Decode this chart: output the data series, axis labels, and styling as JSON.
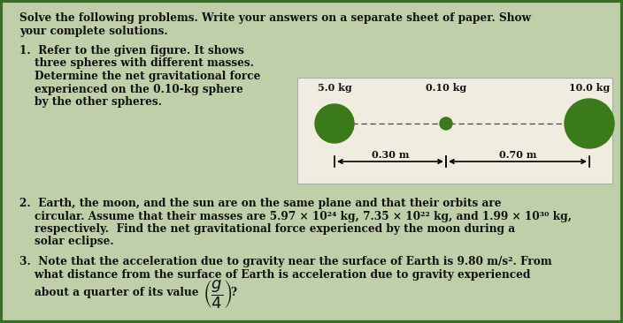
{
  "bg_color": "#bfcfaa",
  "page_bg": "#e8e4d4",
  "border_color": "#3a6e28",
  "border_color2": "#5a9e38",
  "sphere_color": "#3a7a18",
  "diag_bg": "#f0ede0",
  "diag_border": "#aaaaaa",
  "mass1": "5.0 kg",
  "mass2": "0.10 kg",
  "mass3": "10.0 kg",
  "dist1": "0.30 m",
  "dist2": "0.70 m",
  "text_color": "#111111",
  "title1": "Solve the following problems. Write your answers on a separate sheet of paper. Show",
  "title2": "your complete solutions.",
  "p1_l1": "1.  Refer to the given figure. It shows",
  "p1_l2": "    three spheres with different masses.",
  "p1_l3": "    Determine the net gravitational force",
  "p1_l4": "    experienced on the 0.10-kg sphere",
  "p1_l5": "    by the other spheres.",
  "p2_l1": "2.  Earth, the moon, and the sun are on the same plane and that their orbits are",
  "p2_l2": "    circular. Assume that their masses are 5.97 × 10²⁴ kg, 7.35 × 10²² kg, and 1.99 × 10³⁰ kg,",
  "p2_l3": "    respectively.  Find the net gravitational force experienced by the moon during a",
  "p2_l4": "    solar eclipse.",
  "p3_l1": "3.  Note that the acceleration due to gravity near the surface of Earth is 9.80 m/s². From",
  "p3_l2": "    what distance from the surface of Earth is acceleration due to gravity experienced",
  "p3_l3": "    about a quarter of its value "
}
